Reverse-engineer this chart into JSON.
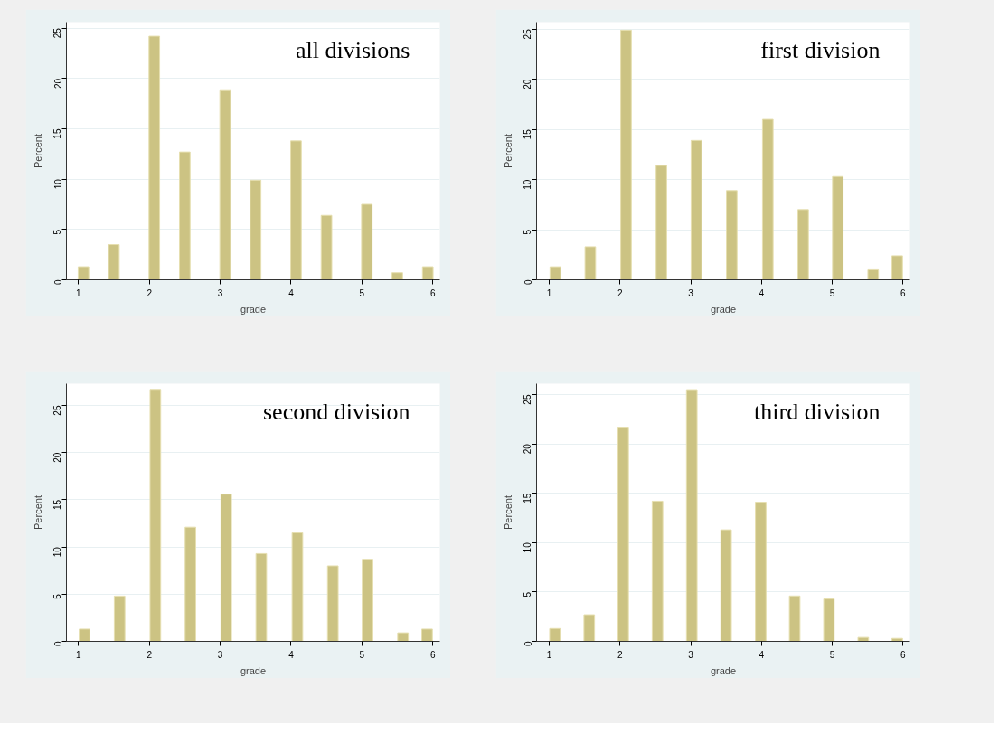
{
  "chart_data": [
    {
      "type": "bar",
      "annotations": [
        "all divisions"
      ],
      "xlabel": "grade",
      "ylabel": "Percent",
      "grid": "y",
      "color": "#ccc383",
      "x": [
        1.07,
        1.5,
        2.07,
        2.5,
        3.07,
        3.5,
        4.07,
        4.5,
        5.07,
        5.5,
        5.93
      ],
      "values": [
        1.3,
        3.5,
        24.2,
        12.7,
        18.8,
        9.9,
        13.8,
        6.4,
        7.5,
        0.7,
        1.3
      ],
      "xlim": [
        0.83,
        6.1
      ],
      "ylim": [
        0,
        25.6
      ],
      "xticks": [
        1,
        2,
        3,
        4,
        5,
        6
      ],
      "yticks": [
        0,
        5,
        10,
        15,
        20,
        25
      ]
    },
    {
      "type": "bar",
      "annotations": [
        "first division"
      ],
      "xlabel": "grade",
      "ylabel": "Percent",
      "grid": "y",
      "color": "#ccc383",
      "x": [
        1.085,
        1.58,
        2.085,
        2.585,
        3.08,
        3.58,
        4.09,
        4.59,
        5.08,
        5.58,
        5.92
      ],
      "values": [
        1.3,
        3.3,
        24.9,
        11.4,
        13.9,
        8.9,
        16.0,
        7.0,
        10.3,
        1.0,
        2.4
      ],
      "xlim": [
        0.82,
        6.1
      ],
      "ylim": [
        0,
        25.7
      ],
      "xticks": [
        1,
        2,
        3,
        4,
        5,
        6
      ],
      "yticks": [
        0,
        5,
        10,
        15,
        20,
        25
      ]
    },
    {
      "type": "bar",
      "annotations": [
        "second division"
      ],
      "xlabel": "grade",
      "ylabel": "Percent",
      "grid": "y",
      "color": "#ccc383",
      "x": [
        1.085,
        1.58,
        2.085,
        2.58,
        3.085,
        3.58,
        4.09,
        4.59,
        5.08,
        5.58,
        5.92
      ],
      "values": [
        1.3,
        4.8,
        26.7,
        12.1,
        15.6,
        9.3,
        11.5,
        8.0,
        8.7,
        0.9,
        1.3
      ],
      "xlim": [
        0.83,
        6.1
      ],
      "ylim": [
        0,
        27.3
      ],
      "xticks": [
        1,
        2,
        3,
        4,
        5,
        6
      ],
      "yticks": [
        0,
        5,
        10,
        15,
        20,
        25
      ]
    },
    {
      "type": "bar",
      "annotations": [
        "third division"
      ],
      "xlabel": "grade",
      "ylabel": "Percent",
      "grid": "y",
      "color": "#ccc383",
      "x": [
        1.08,
        1.565,
        2.045,
        2.53,
        3.015,
        3.5,
        3.99,
        4.47,
        4.955,
        5.44,
        5.92
      ],
      "values": [
        1.3,
        2.7,
        21.7,
        14.2,
        25.5,
        11.3,
        14.1,
        4.6,
        4.3,
        0.4,
        0.3
      ],
      "xlim": [
        0.82,
        6.1
      ],
      "ylim": [
        0,
        26.1
      ],
      "xticks": [
        1,
        2,
        3,
        4,
        5,
        6
      ],
      "yticks": [
        0,
        5,
        10,
        15,
        20,
        25
      ]
    }
  ]
}
